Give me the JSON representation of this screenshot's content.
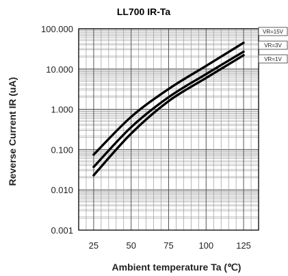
{
  "chart_data": {
    "type": "line",
    "title": "LL700  IR-Ta",
    "xlabel": "Ambient temperature Ta (℃)",
    "ylabel": "Reverse Current IR (uA)",
    "x_ticks": [
      "25",
      "50",
      "75",
      "100",
      "125"
    ],
    "y_ticks": [
      "100.000",
      "10.000",
      "1.000",
      "0.100",
      "0.010",
      "0.001"
    ],
    "xlim": [
      15,
      135
    ],
    "ylim": [
      0.001,
      100
    ],
    "y_scale": "log",
    "grid": true,
    "x": [
      25,
      50,
      75,
      100,
      125
    ],
    "series": [
      {
        "name": "VR=15V",
        "values": [
          0.075,
          0.65,
          3.2,
          12,
          45
        ]
      },
      {
        "name": "VR=3V",
        "values": [
          0.037,
          0.36,
          2.0,
          7.5,
          27
        ]
      },
      {
        "name": "VR=1V",
        "values": [
          0.023,
          0.25,
          1.6,
          6.0,
          22
        ]
      }
    ]
  }
}
